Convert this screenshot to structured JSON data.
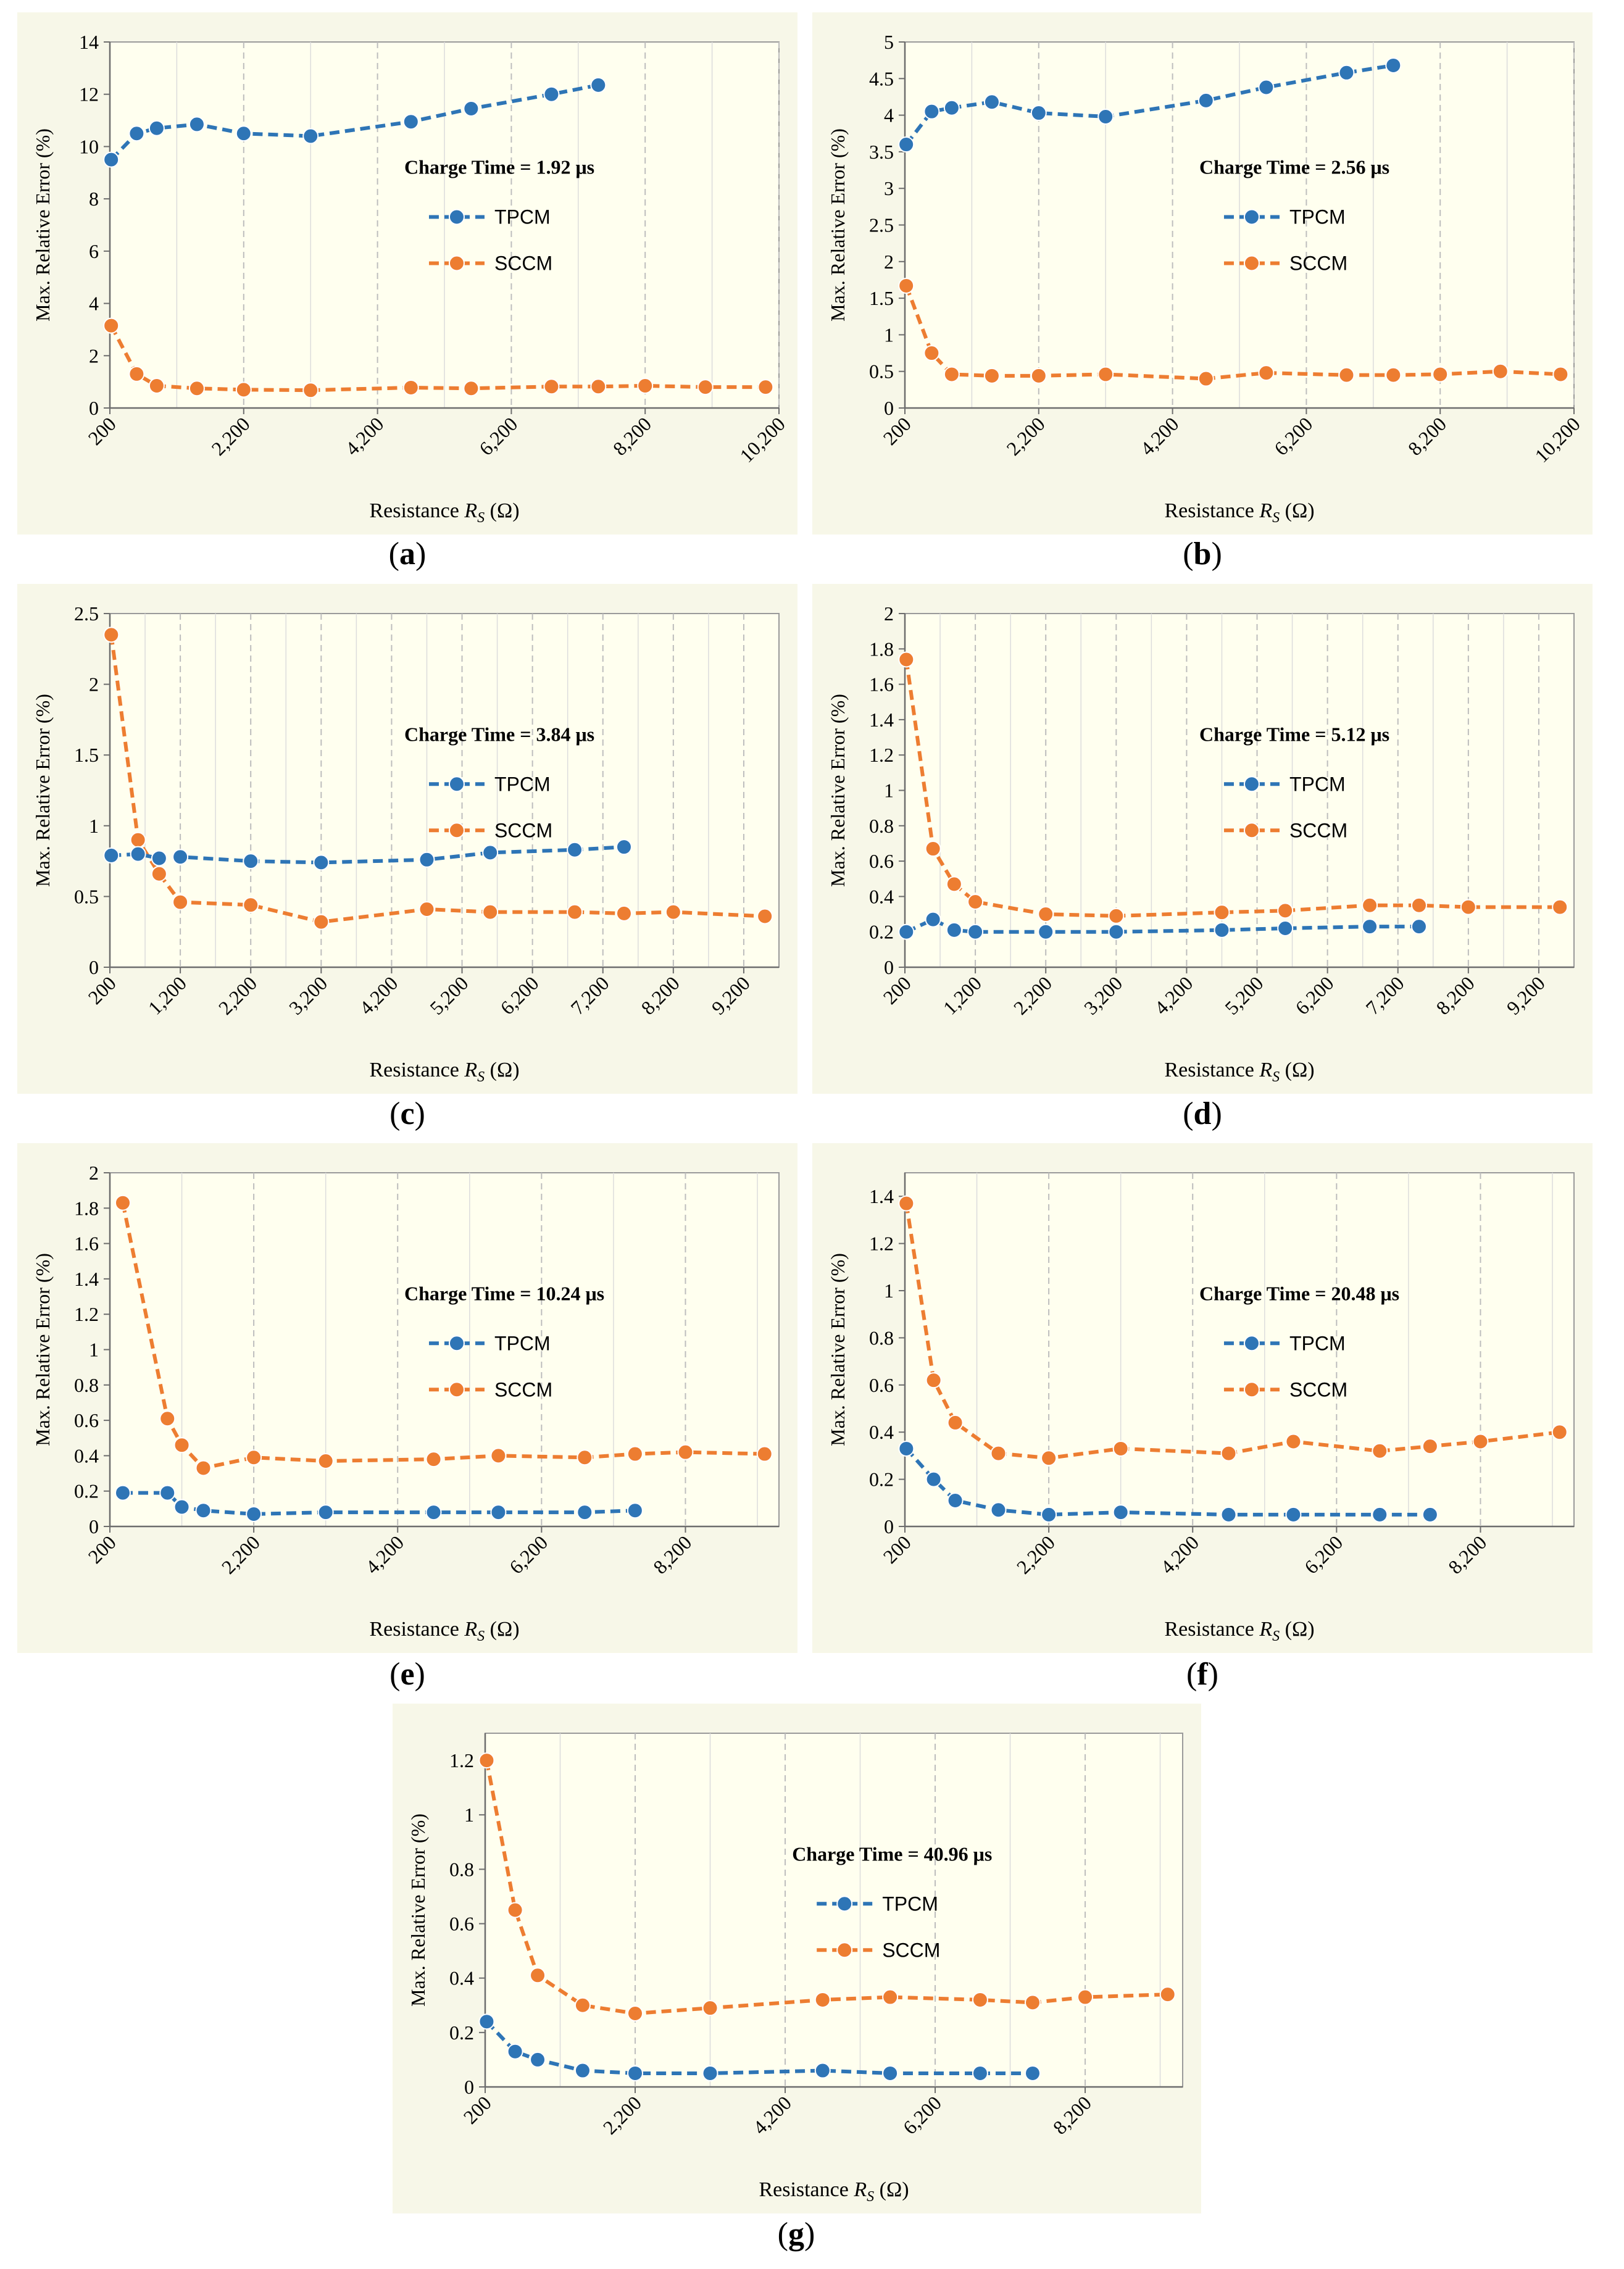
{
  "figure": {
    "x_axis_label": "Resistance",
    "x_axis_symbol": "R",
    "x_axis_subscript": "S",
    "x_axis_unit": " (Ω)",
    "y_axis_label_a": "Max. Relative Error (%)",
    "y_axis_label_b": "Max. Relative  Error (%)",
    "legend_tpcm": "TPCM",
    "legend_sccm": "SCCM",
    "colors": {
      "tpcm": "#2E75B6",
      "sccm": "#ED7D31",
      "plot_bg": "#FFFFEF",
      "panel_bg": "#F7F7E8",
      "grid": "#C8C8C8"
    },
    "panel_letters": [
      "a",
      "b",
      "c",
      "d",
      "e",
      "f",
      "g"
    ]
  },
  "chart_data": [
    {
      "id": "a",
      "type": "line",
      "title": "Charge Time = 1.92 μs",
      "ylabel": "Max. Relative Error (%)",
      "xlabel": "Resistance R_S (Ω)",
      "xlim": [
        200,
        10200
      ],
      "xticks": [
        200,
        2200,
        4200,
        6200,
        8200,
        10200
      ],
      "xtick_labels": [
        "200",
        "2,200",
        "4,200",
        "6,200",
        "8,200",
        "10,200"
      ],
      "x_minor_step": 1000,
      "ylim": [
        0,
        14
      ],
      "yticks": [
        0,
        2,
        4,
        6,
        8,
        10,
        12,
        14
      ],
      "ytick_labels": [
        "0",
        "2",
        "4",
        "6",
        "8",
        "10",
        "12",
        "14"
      ],
      "series": [
        {
          "name": "TPCM",
          "x": [
            220,
            600,
            900,
            1500,
            2200,
            3200,
            4700,
            5600,
            6800,
            7500
          ],
          "y": [
            9.5,
            10.5,
            10.7,
            10.85,
            10.5,
            10.4,
            10.95,
            11.45,
            12.0,
            12.35
          ]
        },
        {
          "name": "SCCM",
          "x": [
            220,
            600,
            900,
            1500,
            2200,
            3200,
            4700,
            5600,
            6800,
            7500,
            8200,
            9100,
            10000
          ],
          "y": [
            3.15,
            1.3,
            0.85,
            0.75,
            0.7,
            0.68,
            0.78,
            0.75,
            0.82,
            0.82,
            0.85,
            0.8,
            0.8
          ]
        }
      ]
    },
    {
      "id": "b",
      "type": "line",
      "title": "Charge Time = 2.56 μs",
      "ylabel": "Max. Relative  Error (%)",
      "xlabel": "Resistance R_S (Ω)",
      "xlim": [
        200,
        10200
      ],
      "xticks": [
        200,
        2200,
        4200,
        6200,
        8200,
        10200
      ],
      "xtick_labels": [
        "200",
        "2,200",
        "4,200",
        "6,200",
        "8,200",
        "10,200"
      ],
      "x_minor_step": 1000,
      "ylim": [
        0,
        5
      ],
      "yticks": [
        0,
        0.5,
        1,
        1.5,
        2,
        2.5,
        3,
        3.5,
        4,
        4.5,
        5
      ],
      "ytick_labels": [
        "0",
        "0.5",
        "1",
        "1.5",
        "2",
        "2.5",
        "3",
        "3.5",
        "4",
        "4.5",
        "5"
      ],
      "series": [
        {
          "name": "TPCM",
          "x": [
            220,
            600,
            900,
            1500,
            2200,
            3200,
            4700,
            5600,
            6800,
            7500
          ],
          "y": [
            3.6,
            4.05,
            4.1,
            4.18,
            4.03,
            3.98,
            4.2,
            4.38,
            4.58,
            4.68
          ]
        },
        {
          "name": "SCCM",
          "x": [
            220,
            600,
            900,
            1500,
            2200,
            3200,
            4700,
            5600,
            6800,
            7500,
            8200,
            9100,
            10000
          ],
          "y": [
            1.67,
            0.75,
            0.46,
            0.44,
            0.44,
            0.46,
            0.4,
            0.48,
            0.45,
            0.45,
            0.46,
            0.5,
            0.46
          ]
        }
      ]
    },
    {
      "id": "c",
      "type": "line",
      "title": "Charge Time = 3.84 μs",
      "ylabel": "Max. Relative  Error (%)",
      "xlabel": "Resistance R_S (Ω)",
      "xlim": [
        200,
        9700
      ],
      "xticks": [
        200,
        1200,
        2200,
        3200,
        4200,
        5200,
        6200,
        7200,
        8200,
        9200
      ],
      "xtick_labels": [
        "200",
        "1,200",
        "2,200",
        "3,200",
        "4,200",
        "5,200",
        "6,200",
        "7,200",
        "8,200",
        "9,200"
      ],
      "x_minor_step": 500,
      "ylim": [
        0,
        2.5
      ],
      "yticks": [
        0,
        0.5,
        1,
        1.5,
        2,
        2.5
      ],
      "ytick_labels": [
        "0",
        "0.5",
        "1",
        "1.5",
        "2",
        "2.5"
      ],
      "series": [
        {
          "name": "TPCM",
          "x": [
            220,
            600,
            900,
            1200,
            2200,
            3200,
            4700,
            5600,
            6800,
            7500
          ],
          "y": [
            0.79,
            0.8,
            0.77,
            0.78,
            0.75,
            0.74,
            0.76,
            0.81,
            0.83,
            0.85
          ]
        },
        {
          "name": "SCCM",
          "x": [
            220,
            600,
            900,
            1200,
            2200,
            3200,
            4700,
            5600,
            6800,
            7500,
            8200,
            9500
          ],
          "y": [
            2.35,
            0.9,
            0.66,
            0.46,
            0.44,
            0.32,
            0.41,
            0.39,
            0.39,
            0.38,
            0.39,
            0.36
          ]
        }
      ]
    },
    {
      "id": "d",
      "type": "line",
      "title": "Charge Time = 5.12 μs",
      "ylabel": "Max. Relative  Error (%)",
      "xlabel": "Resistance R_S (Ω)",
      "xlim": [
        200,
        9700
      ],
      "xticks": [
        200,
        1200,
        2200,
        3200,
        4200,
        5200,
        6200,
        7200,
        8200,
        9200
      ],
      "xtick_labels": [
        "200",
        "1,200",
        "2,200",
        "3,200",
        "4,200",
        "5,200",
        "6,200",
        "7,200",
        "8,200",
        "9,200"
      ],
      "x_minor_step": 500,
      "ylim": [
        0,
        2
      ],
      "yticks": [
        0,
        0.2,
        0.4,
        0.6,
        0.8,
        1,
        1.2,
        1.4,
        1.6,
        1.8,
        2
      ],
      "ytick_labels": [
        "0",
        "0.2",
        "0.4",
        "0.6",
        "0.8",
        "1",
        "1.2",
        "1.4",
        "1.6",
        "1.8",
        "2"
      ],
      "series": [
        {
          "name": "TPCM",
          "x": [
            220,
            600,
            900,
            1200,
            2200,
            3200,
            4700,
            5600,
            6800,
            7500
          ],
          "y": [
            0.2,
            0.27,
            0.21,
            0.2,
            0.2,
            0.2,
            0.21,
            0.22,
            0.23,
            0.23
          ]
        },
        {
          "name": "SCCM",
          "x": [
            220,
            600,
            900,
            1200,
            2200,
            3200,
            4700,
            5600,
            6800,
            7500,
            8200,
            9500
          ],
          "y": [
            1.74,
            0.67,
            0.47,
            0.37,
            0.3,
            0.29,
            0.31,
            0.32,
            0.35,
            0.35,
            0.34,
            0.34
          ]
        }
      ]
    },
    {
      "id": "e",
      "type": "line",
      "title": "Charge Time = 10.24 μs",
      "ylabel": "Max. Relative  Error (%)",
      "xlabel": "Resistance R_S (Ω)",
      "xlim": [
        200,
        9500
      ],
      "xticks": [
        200,
        2200,
        4200,
        6200,
        8200
      ],
      "xtick_labels": [
        "200",
        "2,200",
        "4,200",
        "6,200",
        "8,200"
      ],
      "x_minor_step": 1000,
      "ylim": [
        0,
        2
      ],
      "yticks": [
        0,
        0.2,
        0.4,
        0.6,
        0.8,
        1,
        1.2,
        1.4,
        1.6,
        1.8,
        2
      ],
      "ytick_labels": [
        "0",
        "0.2",
        "0.4",
        "0.6",
        "0.8",
        "1",
        "1.2",
        "1.4",
        "1.6",
        "1.8",
        "2"
      ],
      "series": [
        {
          "name": "TPCM",
          "x": [
            380,
            1000,
            1200,
            1500,
            2200,
            3200,
            4700,
            5600,
            6800,
            7500
          ],
          "y": [
            0.19,
            0.19,
            0.11,
            0.09,
            0.07,
            0.08,
            0.08,
            0.08,
            0.08,
            0.09
          ]
        },
        {
          "name": "SCCM",
          "x": [
            380,
            1000,
            1200,
            1500,
            2200,
            3200,
            4700,
            5600,
            6800,
            7500,
            8200,
            9300
          ],
          "y": [
            1.83,
            0.61,
            0.46,
            0.33,
            0.39,
            0.37,
            0.38,
            0.4,
            0.39,
            0.41,
            0.42,
            0.41
          ]
        }
      ]
    },
    {
      "id": "f",
      "type": "line",
      "title": "Charge Time = 20.48 μs",
      "ylabel": "Max. Relative  Error (%)",
      "xlabel": "Resistance R_S (Ω)",
      "xlim": [
        200,
        9500
      ],
      "xticks": [
        200,
        2200,
        4200,
        6200,
        8200
      ],
      "xtick_labels": [
        "200",
        "2,200",
        "4,200",
        "6,200",
        "8,200"
      ],
      "x_minor_step": 1000,
      "ylim": [
        0,
        1.5
      ],
      "yticks": [
        0,
        0.2,
        0.4,
        0.6,
        0.8,
        1,
        1.2,
        1.4
      ],
      "ytick_labels": [
        "0",
        "0.2",
        "0.4",
        "0.6",
        "0.8",
        "1",
        "1.2",
        "1.4"
      ],
      "series": [
        {
          "name": "TPCM",
          "x": [
            220,
            600,
            900,
            1500,
            2200,
            3200,
            4700,
            5600,
            6800,
            7500
          ],
          "y": [
            0.33,
            0.2,
            0.11,
            0.07,
            0.05,
            0.06,
            0.05,
            0.05,
            0.05,
            0.05
          ]
        },
        {
          "name": "SCCM",
          "x": [
            220,
            600,
            900,
            1500,
            2200,
            3200,
            4700,
            5600,
            6800,
            7500,
            8200,
            9300
          ],
          "y": [
            1.37,
            0.62,
            0.44,
            0.31,
            0.29,
            0.33,
            0.31,
            0.36,
            0.32,
            0.34,
            0.36,
            0.4
          ]
        }
      ]
    },
    {
      "id": "g",
      "type": "line",
      "title": "Charge Time = 40.96 μs",
      "ylabel": "Max. Relative  Error (%)",
      "xlabel": "Resistance R_S (Ω)",
      "xlim": [
        200,
        9500
      ],
      "xticks": [
        200,
        2200,
        4200,
        6200,
        8200
      ],
      "xtick_labels": [
        "200",
        "2,200",
        "4,200",
        "6,200",
        "8,200"
      ],
      "x_minor_step": 1000,
      "ylim": [
        0,
        1.3
      ],
      "yticks": [
        0,
        0.2,
        0.4,
        0.6,
        0.8,
        1,
        1.2
      ],
      "ytick_labels": [
        "0",
        "0.2",
        "0.4",
        "0.6",
        "0.8",
        "1",
        "1.2"
      ],
      "series": [
        {
          "name": "TPCM",
          "x": [
            220,
            600,
            900,
            1500,
            2200,
            3200,
            4700,
            5600,
            6800,
            7500
          ],
          "y": [
            0.24,
            0.13,
            0.1,
            0.06,
            0.05,
            0.05,
            0.06,
            0.05,
            0.05,
            0.05
          ]
        },
        {
          "name": "SCCM",
          "x": [
            220,
            600,
            900,
            1500,
            2200,
            3200,
            4700,
            5600,
            6800,
            7500,
            8200,
            9300
          ],
          "y": [
            1.2,
            0.65,
            0.41,
            0.3,
            0.27,
            0.29,
            0.32,
            0.33,
            0.32,
            0.31,
            0.33,
            0.34
          ]
        }
      ]
    }
  ]
}
